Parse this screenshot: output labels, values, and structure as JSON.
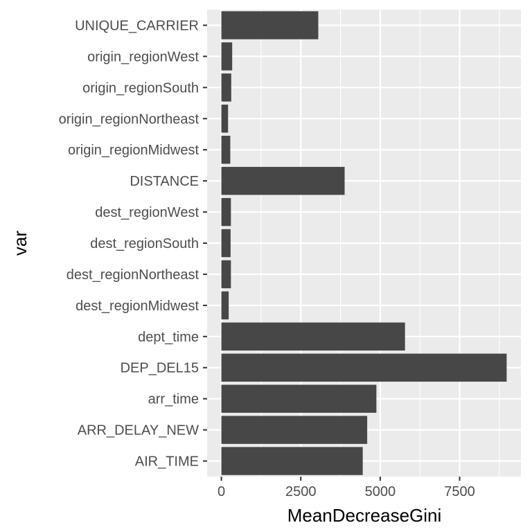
{
  "chart_data": {
    "type": "bar",
    "orientation": "horizontal",
    "categories": [
      "UNIQUE_CARRIER",
      "origin_regionWest",
      "origin_regionSouth",
      "origin_regionNortheast",
      "origin_regionMidwest",
      "DISTANCE",
      "dest_regionWest",
      "dest_regionSouth",
      "dest_regionNortheast",
      "dest_regionMidwest",
      "dept_time",
      "DEP_DEL15",
      "arr_time",
      "ARR_DELAY_NEW",
      "AIR_TIME"
    ],
    "values": [
      3050,
      340,
      310,
      210,
      280,
      3880,
      300,
      290,
      300,
      230,
      5780,
      8980,
      4880,
      4590,
      4450
    ],
    "xlabel": "MeanDecreaseGini",
    "ylabel": "var",
    "xlim": [
      -449,
      9429
    ],
    "x_ticks": [
      0,
      2500,
      5000,
      7500
    ],
    "x_tick_labels": [
      "0",
      "2500",
      "5000",
      "7500"
    ],
    "grid": true,
    "colors": {
      "bar": "#474747",
      "panel": "#ebebeb",
      "grid": "#ffffff",
      "tick_label": "#4d4d4d",
      "tick_mark": "#333333",
      "axis_title": "#000000"
    }
  }
}
